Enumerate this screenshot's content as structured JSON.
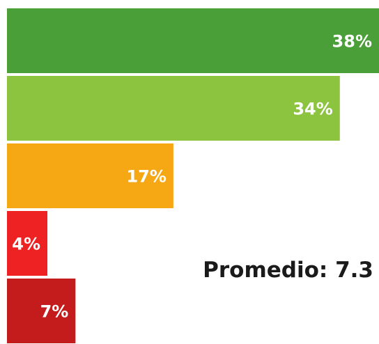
{
  "chart_data": {
    "type": "bar",
    "orientation": "horizontal",
    "categories": [],
    "values": [
      38,
      34,
      17,
      4,
      7
    ],
    "labels": [
      "38%",
      "34%",
      "17%",
      "4%",
      "7%"
    ],
    "colors": [
      "#4b9f39",
      "#8cc43f",
      "#f5a814",
      "#ee2222",
      "#c41c1c"
    ],
    "xlim": [
      0,
      38
    ],
    "grid": false,
    "legend": "none",
    "title": "",
    "xlabel": "",
    "ylabel": ""
  },
  "summary": {
    "text": "Promedio: 7.3"
  }
}
